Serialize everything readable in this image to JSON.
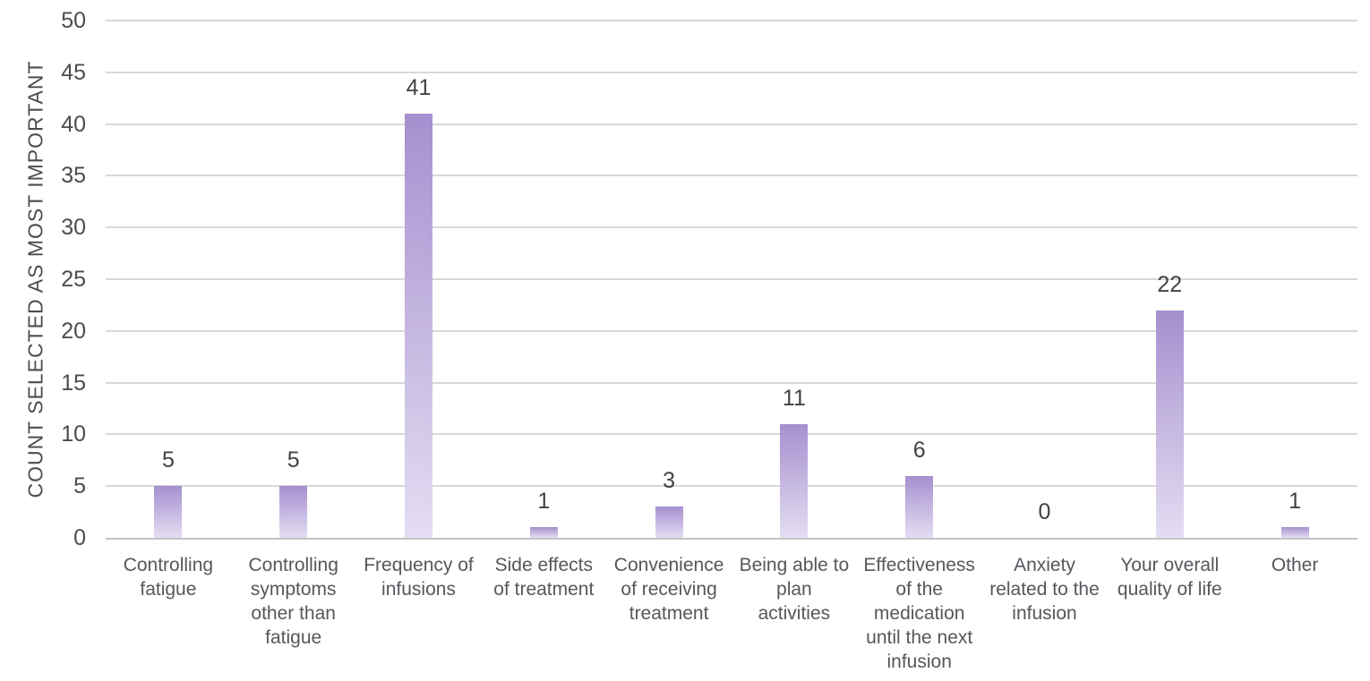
{
  "chart_data": {
    "type": "bar",
    "title": "",
    "xlabel": "",
    "ylabel": "COUNT SELECTED AS MOST IMPORTANT",
    "categories": [
      "Controlling fatigue",
      "Controlling symptoms other than fatigue",
      "Frequency of infusions",
      "Side effects of treatment",
      "Convenience of receiving treatment",
      "Being able to plan activities",
      "Effectiveness of the medication until the next infusion",
      "Anxiety related to the infusion",
      "Your overall quality of life",
      "Other"
    ],
    "category_label_lines": [
      [
        "Controlling",
        "fatigue"
      ],
      [
        "Controlling",
        "symptoms",
        "other than",
        "fatigue"
      ],
      [
        "Frequency of",
        "infusions"
      ],
      [
        "Side effects",
        "of treatment"
      ],
      [
        "Convenience",
        "of receiving",
        "treatment"
      ],
      [
        "Being able to",
        "plan",
        "activities"
      ],
      [
        "Effectiveness",
        "of the",
        "medication",
        "until the next",
        "infusion"
      ],
      [
        "Anxiety",
        "related to the",
        "infusion"
      ],
      [
        "Your overall",
        "quality of life"
      ],
      [
        "Other"
      ]
    ],
    "values": [
      5,
      5,
      41,
      1,
      3,
      11,
      6,
      0,
      22,
      1
    ],
    "data_labels": [
      5,
      5,
      41,
      1,
      3,
      11,
      6,
      0,
      22,
      1
    ],
    "ylim": [
      0,
      50
    ],
    "yticks": [
      0,
      5,
      10,
      15,
      20,
      25,
      30,
      35,
      40,
      45,
      50
    ],
    "grid": true,
    "legend": false,
    "colors": {
      "bar_gradient_top": "#a590cf",
      "bar_gradient_bottom": "#e4ddf2",
      "gridline": "#d8d8d8",
      "axis_line": "#c3c3c3",
      "tick_text": "#4c4c50",
      "value_label_text": "#424246",
      "category_text": "#55575c",
      "y_title_text": "#4c4c50",
      "background": "#ffffff"
    }
  }
}
